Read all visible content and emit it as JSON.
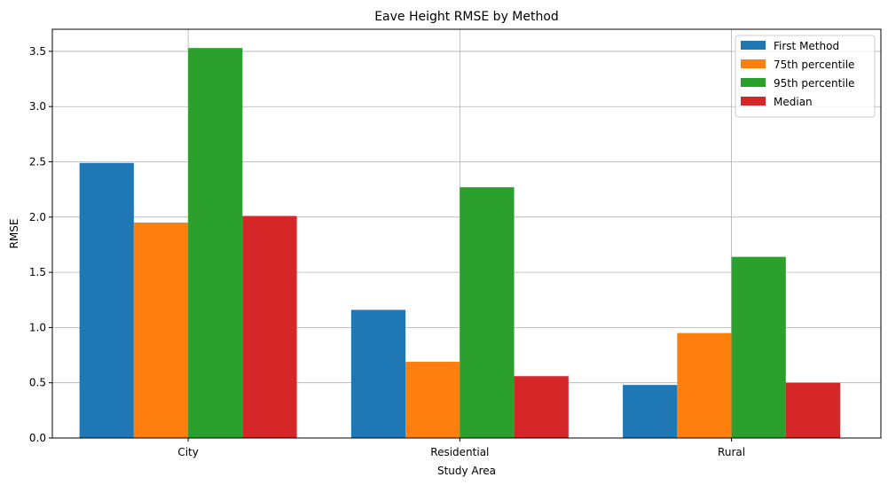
{
  "chart_data": {
    "type": "bar",
    "title": "Eave Height RMSE by Method",
    "xlabel": "Study Area",
    "ylabel": "RMSE",
    "categories": [
      "City",
      "Residential",
      "Rural"
    ],
    "series": [
      {
        "name": "First Method",
        "color": "#1f77b4",
        "values": [
          2.49,
          1.16,
          0.48
        ]
      },
      {
        "name": "75th percentile",
        "color": "#ff7f0e",
        "values": [
          1.95,
          0.69,
          0.95
        ]
      },
      {
        "name": "95th percentile",
        "color": "#2ca02c",
        "values": [
          3.53,
          2.27,
          1.64
        ]
      },
      {
        "name": "Median",
        "color": "#d62728",
        "values": [
          2.01,
          0.56,
          0.5
        ]
      }
    ],
    "ylim": [
      0,
      3.7
    ],
    "yticks": [
      "0.0",
      "0.5",
      "1.0",
      "1.5",
      "2.0",
      "2.5",
      "3.0",
      "3.5"
    ],
    "grid": true,
    "legend": "top-right"
  }
}
